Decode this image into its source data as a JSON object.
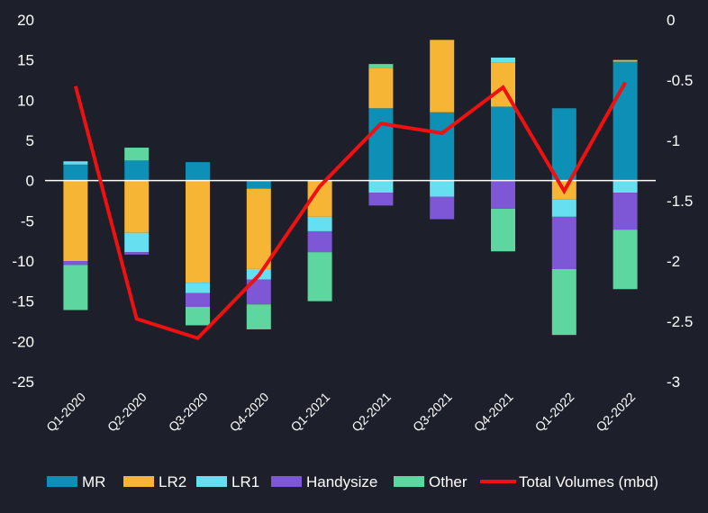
{
  "chart_data": {
    "type": "bar",
    "stacked": true,
    "categories": [
      "Q1-2020",
      "Q2-2020",
      "Q3-2020",
      "Q4-2020",
      "Q1-2021",
      "Q2-2021",
      "Q3-2021",
      "Q4-2021",
      "Q1-2022",
      "Q2-2022"
    ],
    "series": [
      {
        "name": "MR",
        "color": "#0e8fb5",
        "values": [
          2.0,
          2.5,
          2.3,
          -1.0,
          0.0,
          9.0,
          8.5,
          9.2,
          9.0,
          14.8
        ]
      },
      {
        "name": "LR2",
        "color": "#f7b535",
        "values": [
          -10.0,
          -6.5,
          -12.7,
          -10.0,
          -4.5,
          5.0,
          9.0,
          5.5,
          -2.3,
          0.2
        ]
      },
      {
        "name": "LR1",
        "color": "#66e0f0",
        "values": [
          0.4,
          -2.4,
          -1.3,
          -1.3,
          -1.8,
          -1.5,
          -2.0,
          0.6,
          -2.2,
          -1.5
        ]
      },
      {
        "name": "Handysize",
        "color": "#7d57d6",
        "values": [
          -0.5,
          -0.3,
          -1.7,
          -3.1,
          -2.6,
          -1.6,
          -2.8,
          -3.5,
          -6.5,
          -4.6
        ]
      },
      {
        "name": "Other",
        "color": "#5ed6a0",
        "values": [
          -5.6,
          1.6,
          -2.3,
          -3.1,
          -6.1,
          0.5,
          0.0,
          -5.3,
          -8.2,
          -7.4
        ]
      }
    ],
    "line": {
      "name": "Total Volumes (mbd)",
      "color": "#ef1010",
      "axis": "right",
      "values": [
        -0.55,
        -2.48,
        -2.64,
        -2.12,
        -1.38,
        -0.86,
        -0.94,
        -0.56,
        -1.42,
        -0.52
      ]
    },
    "ylim_left": [
      -25,
      20
    ],
    "ylim_right": [
      -3,
      0
    ],
    "yticks_left": [
      "20",
      "15",
      "10",
      "5",
      "0",
      "-5",
      "-10",
      "-15",
      "-20",
      "-25"
    ],
    "yticks_right": [
      "0",
      "-0.5",
      "-1",
      "-1.5",
      "-2",
      "-2.5",
      "-3"
    ],
    "legend_position": "bottom",
    "grid": false
  }
}
